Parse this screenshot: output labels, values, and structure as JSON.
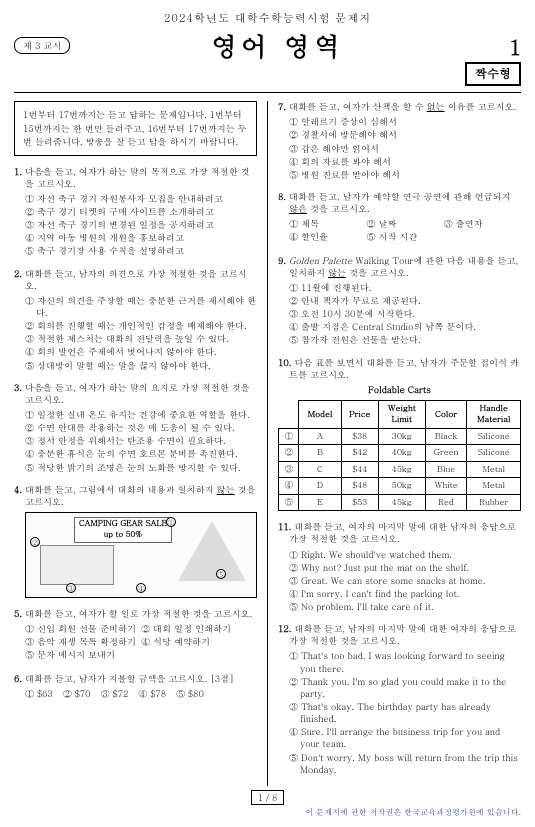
{
  "header": {
    "top": "2024학년도 대학수학능력시험 문제지",
    "period": "제 3 교시",
    "title": "영어 영역",
    "pagenum": "1",
    "oddeven": "짝수형"
  },
  "notice": "1번부터 17번까지는 듣고 답하는 문제입니다. 1번부터 15번까지는 한 번만 들려주고, 16번부터 17번까지는 두 번 들려줍니다. 방송을 잘 듣고 답을 하시기 바랍니다.",
  "q1": {
    "text": "다음을 듣고, 여자가 하는 말의 목적으로 가장 적절한 것을 고르시오.",
    "c1": "① 자선 축구 경기 자원봉사자 모집을 안내하려고",
    "c2": "② 축구 경기 티켓의 구매 사이트를 소개하려고",
    "c3": "③ 자선 축구 경기의 변경된 일정을 공지하려고",
    "c4": "④ 지역 아동 병원의 개원을 홍보하려고",
    "c5": "⑤ 축구 경기장 사용 수칙을 설명하려고"
  },
  "q2": {
    "text": "대화를 듣고, 남자의 의견으로 가장 적절한 것을 고르시오.",
    "c1": "① 자신의 의견을 주장할 때는 충분한 근거를 제시해야 한다.",
    "c2": "② 회의를 진행할 때는 개인적인 감정을 배제해야 한다.",
    "c3": "③ 적절한 제스처는 대화의 전달력을 높일 수 있다.",
    "c4": "④ 회의 발언은 주제에서 벗어나지 않아야 한다.",
    "c5": "⑤ 상대방이 말할 때는 말을 끊지 않아야 한다."
  },
  "q3": {
    "text": "다음을 듣고, 여자가 하는 말의 요지로 가장 적절한 것을 고르시오.",
    "c1": "① 일정한 실내 온도 유지는 건강에 중요한 역할을 한다.",
    "c2": "② 수면 안대를 착용하는 것은 매 도움이 될 수 있다.",
    "c3": "③ 정서 안정을 위해서는 탄조용 수면이 필요하다.",
    "c4": "④ 충분한 휴식은 눈의 수면 호르몬 분비를 촉진한다.",
    "c5": "⑤ 적당한 밝기의 조명은 눈의 노화를 방지할 수 있다."
  },
  "q4": {
    "text": "대화를 듣고, 그림에서 대화의 내용과 일치하지 않는 것을 고르시오.",
    "banner": "CAMPING GEAR SALE\nup to 50%",
    "circ1": "①",
    "circ2": "②",
    "circ3": "③",
    "circ4": "④",
    "circ5": "⑤"
  },
  "q5": {
    "text": "대화를 듣고, 여자가 할 일로 가장 적절한 것을 고르시오.",
    "c1": "① 신입 회원 선물 준비하기",
    "c2": "② 대회 일정 인쇄하기",
    "c3": "③ 음악 재생 목록 확정하기",
    "c4": "④ 식당 예약하기",
    "c5": "⑤ 문자 메시지 보내기"
  },
  "q6": {
    "text": "대화를 듣고, 남자가 지불할 금액을 고르시오. [3점]",
    "c1": "① $63",
    "c2": "② $70",
    "c3": "③ $72",
    "c4": "④ $78",
    "c5": "⑤ $80"
  },
  "q7": {
    "text": "대화를 듣고, 여자가 산책을 할 수 없는 이유를 고르시오.",
    "c1": "① 알레르기 증상이 심해서",
    "c2": "② 경찰서에 방문해야 해서",
    "c3": "③ 갑은 해야만 읽어서",
    "c4": "④ 회의 자료를 봐야 해서",
    "c5": "⑤ 병원 진료를 받아야 해서"
  },
  "q8": {
    "text": "대화를 듣고, 남자가 예약할 연극 공연에 관해 언급되지 않은 것을 고르시오.",
    "c1": "① 제목",
    "c2": "② 날짜",
    "c3": "③ 출연자",
    "c4": "④ 할인율",
    "c5": "⑤ 시작 시간"
  },
  "q9": {
    "text": "Golden Palette Walking Tour에 관한 다음 내용을 듣고, 일치하지 않는 것을 고르시오.",
    "c1": "① 11월에 진행된다.",
    "c2": "② 안내 책자가 무료로 제공된다.",
    "c3": "③ 오전 10시 30분에 시작한다.",
    "c4": "④ 출발 지점은 Central Studio의 남쪽 문이다.",
    "c5": "⑤ 참가자 전원은 선물을 받는다."
  },
  "q10": {
    "text": "다음 표를 보면서 대화를 듣고, 남자가 주문할 접이식 카트를 고르시오.",
    "caption": "Foldable Carts",
    "head": {
      "m": "Model",
      "p": "Price",
      "w": "Weight\nLimit",
      "c": "Color",
      "h": "Handle\nMaterial"
    },
    "rows": [
      {
        "n": "①",
        "m": "A",
        "p": "$38",
        "w": "30kg",
        "c": "Black",
        "h": "Silicone"
      },
      {
        "n": "②",
        "m": "B",
        "p": "$42",
        "w": "40kg",
        "c": "Green",
        "h": "Silicone"
      },
      {
        "n": "③",
        "m": "C",
        "p": "$44",
        "w": "45kg",
        "c": "Blue",
        "h": "Metal"
      },
      {
        "n": "④",
        "m": "D",
        "p": "$48",
        "w": "50kg",
        "c": "White",
        "h": "Metal"
      },
      {
        "n": "⑤",
        "m": "E",
        "p": "$53",
        "w": "45kg",
        "c": "Red",
        "h": "Rubber"
      }
    ]
  },
  "q11": {
    "text": "대화를 듣고, 여자의 마지막 말에 대한 남자의 응답으로 가장 적절한 것을 고르시오.",
    "c1": "① Right. We should've watched them.",
    "c2": "② Why not? Just put the mat on the shelf.",
    "c3": "③ Great. We can store some snacks at home.",
    "c4": "④ I'm sorry. I can't find the parking lot.",
    "c5": "⑤ No problem. I'll take care of it."
  },
  "q12": {
    "text": "대화를 듣고, 남자의 마지막 말에 대한 여자의 응답으로 가장 적절한 것을 고르시오.",
    "c1": "① That's too bad. I was looking forward to seeing you there.",
    "c2": "② Thank you. I'm so glad you could make it to the party.",
    "c3": "③ That's okay. The birthday party has already finished.",
    "c4": "④ Sure. I'll arrange the business trip for you and your team.",
    "c5": "⑤ Don't worry. My boss will return from the trip this Monday."
  },
  "footer": {
    "page": "1／8",
    "copy": "이 문제지에 관한 저작권은 한국교육과정평가원에 있습니다."
  }
}
